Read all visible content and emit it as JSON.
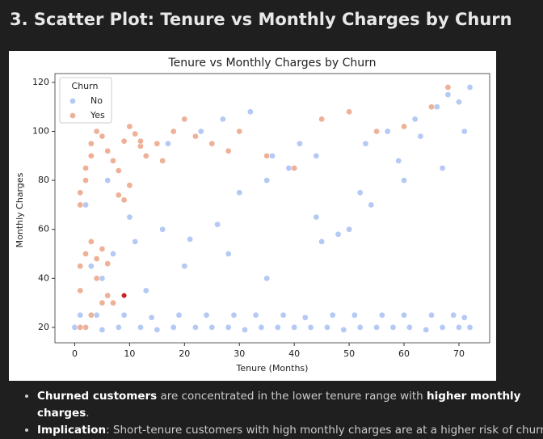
{
  "heading": "3. Scatter Plot: Tenure vs Monthly Charges by Churn",
  "chart_data": {
    "type": "scatter",
    "title": "Tenure vs Monthly Charges by Churn",
    "x_label": "Tenure (Months)",
    "y_label": "Monthly Charges",
    "xlim": [
      -3.6,
      75.6
    ],
    "ylim": [
      13.7,
      123.6
    ],
    "xticks": [
      0,
      10,
      20,
      30,
      40,
      50,
      60,
      70
    ],
    "yticks": [
      20,
      40,
      60,
      80,
      100,
      120
    ],
    "legend_title": "Churn",
    "legend_position": "upper left",
    "series": [
      {
        "name": "No",
        "color": "#b4c9f4",
        "x": [
          0,
          2,
          5,
          8,
          12,
          15,
          18,
          22,
          25,
          28,
          31,
          34,
          37,
          40,
          43,
          46,
          49,
          52,
          55,
          58,
          61,
          64,
          67,
          70,
          72,
          1,
          4,
          9,
          14,
          19,
          24,
          29,
          33,
          38,
          42,
          47,
          51,
          56,
          60,
          65,
          69,
          71,
          3,
          7,
          11,
          16,
          21,
          26,
          30,
          35,
          39,
          44,
          48,
          53,
          57,
          62,
          66,
          70,
          2,
          6,
          10,
          17,
          23,
          27,
          32,
          36,
          41,
          45,
          50,
          54,
          59,
          63,
          68,
          72,
          5,
          13,
          20,
          28,
          35,
          44,
          52,
          60,
          67,
          71
        ],
        "y": [
          20,
          20,
          19,
          20,
          20,
          19,
          20,
          20,
          20,
          20,
          19,
          20,
          20,
          20,
          20,
          20,
          19,
          20,
          20,
          20,
          20,
          19,
          20,
          20,
          20,
          25,
          25,
          25,
          24,
          25,
          25,
          25,
          25,
          25,
          24,
          25,
          25,
          25,
          25,
          25,
          25,
          24,
          45,
          50,
          55,
          60,
          56,
          62,
          75,
          80,
          85,
          90,
          58,
          95,
          100,
          105,
          110,
          112,
          70,
          80,
          65,
          95,
          100,
          105,
          108,
          90,
          95,
          55,
          60,
          70,
          88,
          98,
          115,
          118,
          40,
          35,
          45,
          50,
          40,
          65,
          75,
          80,
          85,
          100
        ]
      },
      {
        "name": "Yes",
        "color": "#eeb197",
        "x": [
          1,
          1,
          2,
          2,
          3,
          3,
          4,
          5,
          6,
          7,
          8,
          9,
          10,
          11,
          12,
          1,
          2,
          3,
          4,
          5,
          6,
          8,
          10,
          13,
          15,
          18,
          20,
          22,
          25,
          28,
          30,
          35,
          40,
          45,
          50,
          55,
          60,
          65,
          68,
          1,
          2,
          3,
          5,
          7,
          1,
          4,
          6,
          9,
          12,
          16
        ],
        "y": [
          70,
          75,
          80,
          85,
          90,
          95,
          100,
          98,
          92,
          88,
          84,
          96,
          102,
          99,
          94,
          45,
          50,
          55,
          48,
          52,
          46,
          74,
          78,
          90,
          95,
          100,
          105,
          98,
          95,
          92,
          100,
          90,
          85,
          105,
          108,
          100,
          102,
          110,
          118,
          20,
          20,
          25,
          30,
          30,
          35,
          40,
          33,
          72,
          96,
          88
        ]
      }
    ],
    "highlight_point": {
      "x": 9,
      "y": 33,
      "color": "#cc1f1f"
    }
  },
  "notes": [
    {
      "parts": [
        {
          "text": "Churned customers",
          "bold": true
        },
        {
          "text": " are concentrated in the lower tenure range with ",
          "bold": false
        },
        {
          "text": "higher monthly charges",
          "bold": true
        },
        {
          "text": ".",
          "bold": false
        }
      ]
    },
    {
      "parts": [
        {
          "text": "Implication",
          "bold": true
        },
        {
          "text": ": Short-tenure customers with high monthly charges are at a higher risk of churn.",
          "bold": false
        }
      ]
    }
  ]
}
